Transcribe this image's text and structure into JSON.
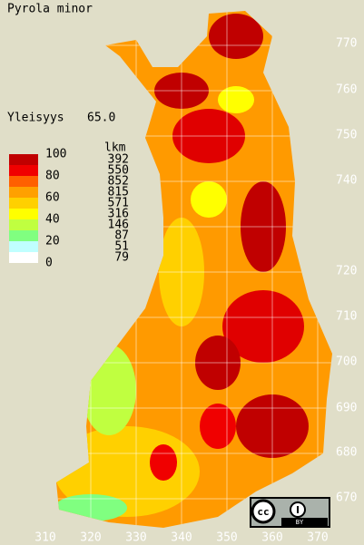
{
  "title": "Pyrola minor",
  "frequency": {
    "label": "Yleisyys",
    "value": "65.0"
  },
  "legend": {
    "scale_labels": [
      "100",
      "80",
      "60",
      "40",
      "20",
      "0"
    ],
    "count_header": "lkm",
    "counts": [
      392,
      550,
      852,
      815,
      571,
      316,
      146,
      87,
      51,
      79
    ],
    "colors": [
      "#c00000",
      "#f00000",
      "#ff6000",
      "#ffa000",
      "#ffd000",
      "#ffff00",
      "#c0ff40",
      "#80ff80",
      "#c0ffff",
      "#ffffff"
    ]
  },
  "grid": {
    "y_labels": [
      "770",
      "760",
      "750",
      "740",
      "720",
      "710",
      "700",
      "690",
      "680",
      "670"
    ],
    "x_labels": [
      "310",
      "320",
      "330",
      "340",
      "350",
      "360",
      "370"
    ]
  },
  "license": {
    "mark": "cc",
    "by": "BY"
  }
}
